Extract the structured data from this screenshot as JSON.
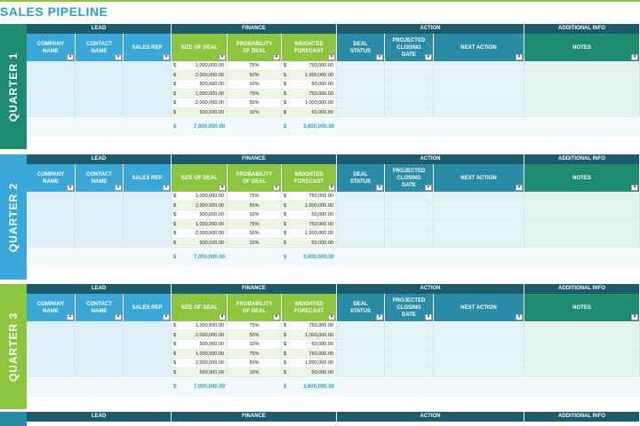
{
  "title": "SALES PIPELINE",
  "colors": {
    "accent": "#2e9ccd",
    "lead_header": "#3aa7d9",
    "finance_header": "#8cc63f",
    "action_header": "#2a8ba6",
    "additional_header": "#1e8c6e",
    "group_bar": "#1b5b6b",
    "q1": "#1e8c6e",
    "q2": "#3aa7d9",
    "q3": "#8cc63f"
  },
  "groups": {
    "lead": "LEAD",
    "finance": "FINANCE",
    "action": "ACTION",
    "additional": "ADDITIONAL INFO"
  },
  "columns": {
    "company": "COMPANY NAME",
    "contact": "CONTACT NAME",
    "rep": "SALES REP",
    "size": "SIZE OF DEAL",
    "prob": "PROBABILITY OF DEAL",
    "weighted": "WEIGHTED FORECAST",
    "status": "DEAL STATUS",
    "closing": "PROJECTED CLOSING DATE",
    "next": "NEXT ACTION",
    "notes": "NOTES"
  },
  "dropdown_icon": "filter-dropdown-icon",
  "currency": "$",
  "quarters": [
    {
      "label": "QUARTER 1",
      "rows": [
        {
          "size": "1,000,000.00",
          "prob": "75%",
          "weighted": "750,000.00"
        },
        {
          "size": "2,000,000.00",
          "prob": "50%",
          "weighted": "1,000,000.00"
        },
        {
          "size": "500,000.00",
          "prob": "10%",
          "weighted": "50,000.00"
        },
        {
          "size": "1,000,000.00",
          "prob": "75%",
          "weighted": "750,000.00"
        },
        {
          "size": "2,000,000.00",
          "prob": "50%",
          "weighted": "1,000,000.00"
        },
        {
          "size": "500,000.00",
          "prob": "10%",
          "weighted": "50,000.00"
        }
      ],
      "total_size": "7,000,000.00",
      "total_weighted": "3,600,000.00"
    },
    {
      "label": "QUARTER 2",
      "rows": [
        {
          "size": "1,000,000.00",
          "prob": "75%",
          "weighted": "750,000.00"
        },
        {
          "size": "2,000,000.00",
          "prob": "50%",
          "weighted": "1,000,000.00"
        },
        {
          "size": "500,000.00",
          "prob": "10%",
          "weighted": "50,000.00"
        },
        {
          "size": "1,000,000.00",
          "prob": "75%",
          "weighted": "750,000.00"
        },
        {
          "size": "2,000,000.00",
          "prob": "50%",
          "weighted": "1,000,000.00"
        },
        {
          "size": "500,000.00",
          "prob": "10%",
          "weighted": "50,000.00"
        }
      ],
      "total_size": "7,000,000.00",
      "total_weighted": "3,600,000.00"
    },
    {
      "label": "QUARTER 3",
      "rows": [
        {
          "size": "1,000,000.00",
          "prob": "75%",
          "weighted": "750,000.00"
        },
        {
          "size": "2,000,000.00",
          "prob": "50%",
          "weighted": "1,000,000.00"
        },
        {
          "size": "500,000.00",
          "prob": "10%",
          "weighted": "50,000.00"
        },
        {
          "size": "1,000,000.00",
          "prob": "75%",
          "weighted": "750,000.00"
        },
        {
          "size": "2,000,000.00",
          "prob": "50%",
          "weighted": "1,000,000.00"
        },
        {
          "size": "500,000.00",
          "prob": "10%",
          "weighted": "50,000.00"
        }
      ],
      "total_size": "7,000,000.00",
      "total_weighted": "3,600,000.00"
    }
  ]
}
